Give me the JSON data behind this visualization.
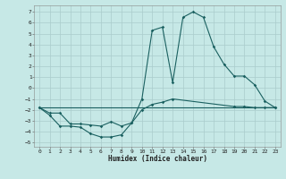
{
  "xlabel": "Humidex (Indice chaleur)",
  "bg_color": "#c6e8e6",
  "grid_color": "#aacccc",
  "line_color": "#1a6060",
  "xlim": [
    -0.5,
    23.5
  ],
  "ylim": [
    -5.4,
    7.6
  ],
  "yticks": [
    -5,
    -4,
    -3,
    -2,
    -1,
    0,
    1,
    2,
    3,
    4,
    5,
    6,
    7
  ],
  "xticks": [
    0,
    1,
    2,
    3,
    4,
    5,
    6,
    7,
    8,
    9,
    10,
    11,
    12,
    13,
    14,
    15,
    16,
    17,
    18,
    19,
    20,
    21,
    22,
    23
  ],
  "curve1_x": [
    0,
    1,
    2,
    3,
    4,
    5,
    6,
    7,
    8,
    9,
    10,
    11,
    12,
    13,
    14,
    15,
    16,
    17,
    18,
    19,
    20,
    21,
    22,
    23
  ],
  "curve1_y": [
    -1.8,
    -2.5,
    -3.5,
    -3.5,
    -3.6,
    -4.2,
    -4.5,
    -4.5,
    -4.3,
    -3.2,
    -1.0,
    5.3,
    5.6,
    0.5,
    6.5,
    7.0,
    6.5,
    3.8,
    2.2,
    1.1,
    1.1,
    0.3,
    -1.2,
    -1.8
  ],
  "curve2_x": [
    0,
    1,
    2,
    3,
    4,
    5,
    6,
    7,
    8,
    9,
    10,
    11,
    12,
    13,
    19,
    20,
    21,
    22,
    23
  ],
  "curve2_y": [
    -1.8,
    -2.3,
    -2.3,
    -3.3,
    -3.3,
    -3.4,
    -3.5,
    -3.1,
    -3.5,
    -3.2,
    -2.0,
    -1.5,
    -1.3,
    -1.0,
    -1.7,
    -1.7,
    -1.8,
    -1.8,
    -1.8
  ],
  "curve3_x": [
    0,
    23
  ],
  "curve3_y": [
    -1.8,
    -1.8
  ]
}
